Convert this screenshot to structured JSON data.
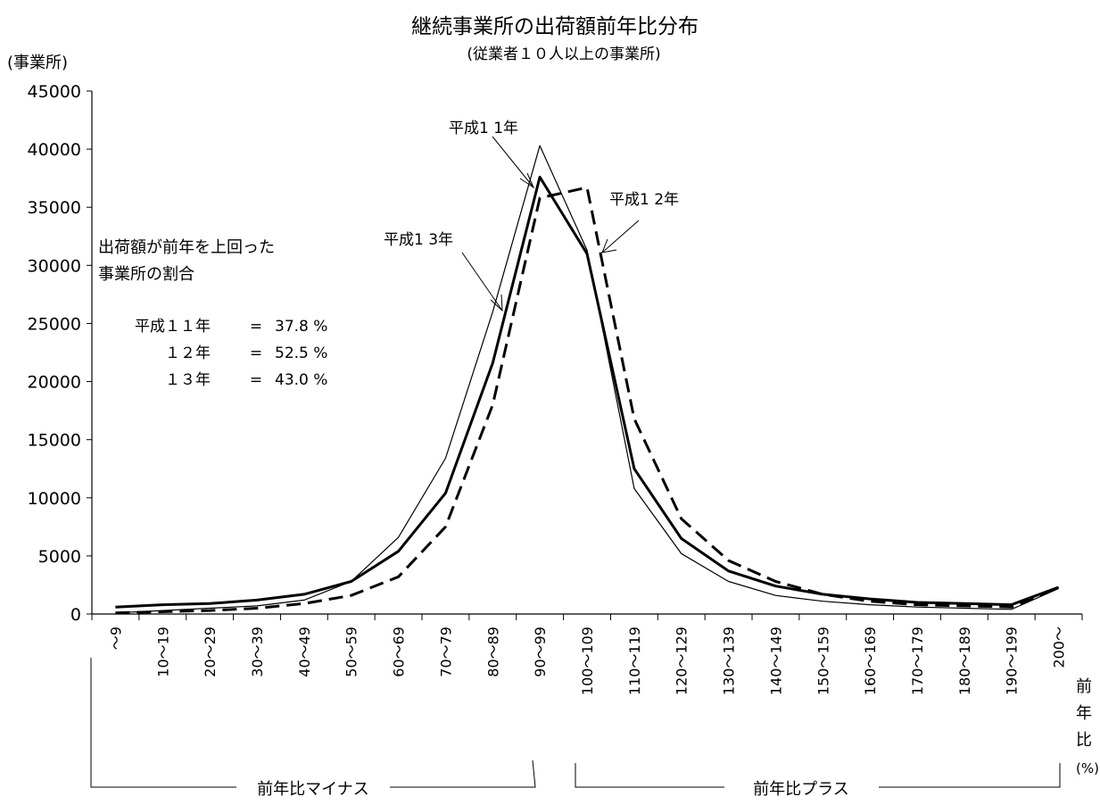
{
  "chart_data": {
    "type": "line",
    "title": "継続事業所の出荷額前年比分布",
    "subtitle": "(従業者１０人以上の事業所)",
    "ylabel": "(事業所)",
    "xlabel_chars": [
      "前",
      "年",
      "比"
    ],
    "xlabel_unit": "(%)",
    "ylim": [
      0,
      45000
    ],
    "y_ticks": [
      0,
      5000,
      10000,
      15000,
      20000,
      25000,
      30000,
      35000,
      40000,
      45000
    ],
    "categories": [
      "～9",
      "10～19",
      "20～29",
      "30～39",
      "40～49",
      "50～59",
      "60～69",
      "70～79",
      "80～89",
      "90～99",
      "100～109",
      "110～119",
      "120～129",
      "130～139",
      "140～149",
      "150～159",
      "160～169",
      "170～179",
      "180～189",
      "190～199",
      "200～"
    ],
    "series": [
      {
        "name": "平成１１年",
        "style": "thin",
        "values": [
          100,
          300,
          500,
          700,
          1200,
          2800,
          6600,
          13400,
          26000,
          40300,
          31300,
          10800,
          5200,
          2800,
          1600,
          1100,
          800,
          600,
          500,
          400,
          2200
        ]
      },
      {
        "name": "平成１２年",
        "style": "dashed",
        "values": [
          100,
          200,
          300,
          500,
          900,
          1600,
          3200,
          7500,
          18000,
          35800,
          36700,
          16800,
          8200,
          4600,
          2800,
          1700,
          1100,
          800,
          700,
          600,
          2300
        ]
      },
      {
        "name": "平成１３年",
        "style": "bold",
        "values": [
          600,
          800,
          900,
          1200,
          1700,
          2800,
          5400,
          10400,
          21600,
          37600,
          31000,
          12500,
          6500,
          3700,
          2400,
          1700,
          1300,
          1000,
          900,
          800,
          2300
        ]
      }
    ],
    "annotations": {
      "label_h11": "平成1 1年",
      "label_h12": "平成1 2年",
      "label_h13": "平成1 3年",
      "ratio_title_line1": "出荷額が前年を上回った",
      "ratio_title_line2": "事業所の割合",
      "ratio_rows": [
        {
          "year": "平成１１年",
          "eq": "=",
          "value": "37.8 %"
        },
        {
          "year": "１２年",
          "eq": "=",
          "value": "52.5 %"
        },
        {
          "year": "１３年",
          "eq": "=",
          "value": "43.0 %"
        }
      ],
      "bracket_minus": "前年比マイナス",
      "bracket_plus": "前年比プラス"
    },
    "grid": false,
    "legend": "none"
  }
}
